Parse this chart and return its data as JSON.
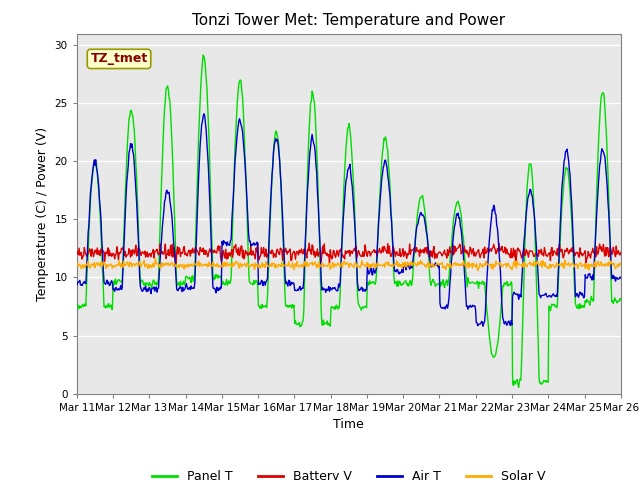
{
  "title": "Tonzi Tower Met: Temperature and Power",
  "xlabel": "Time",
  "ylabel": "Temperature (C) / Power (V)",
  "ylim": [
    0,
    31
  ],
  "yticks": [
    0,
    5,
    10,
    15,
    20,
    25,
    30
  ],
  "annotation_text": "TZ_tmet",
  "annotation_color": "#880000",
  "annotation_bg": "#ffffcc",
  "annotation_border": "#999900",
  "bg_color": "#e8e8e8",
  "line_colors": {
    "panel_t": "#00dd00",
    "battery_v": "#dd0000",
    "air_t": "#0000cc",
    "solar_v": "#ffaa00"
  },
  "legend_labels": [
    "Panel T",
    "Battery V",
    "Air T",
    "Solar V"
  ],
  "x_tick_labels": [
    "Mar 11",
    "Mar 12",
    "Mar 13",
    "Mar 14",
    "Mar 15",
    "Mar 16",
    "Mar 17",
    "Mar 18",
    "Mar 19",
    "Mar 20",
    "Mar 21",
    "Mar 22",
    "Mar 23",
    "Mar 24",
    "Mar 25",
    "Mar 26"
  ],
  "panel_t_peaks": [
    20.0,
    24.5,
    26.5,
    29.0,
    27.0,
    22.5,
    26.0,
    23.0,
    22.0,
    17.0,
    16.5,
    3.0,
    20.0,
    19.5,
    26.0
  ],
  "panel_t_nights": [
    7.5,
    9.5,
    9.5,
    10.0,
    9.5,
    7.5,
    6.0,
    7.5,
    9.5,
    9.5,
    9.5,
    9.5,
    1.0,
    7.5,
    8.0
  ],
  "air_t_peaks": [
    20.0,
    21.5,
    17.5,
    24.0,
    23.5,
    22.0,
    22.0,
    19.5,
    20.0,
    15.5,
    15.5,
    16.0,
    17.5,
    21.0,
    21.0
  ],
  "air_t_nights": [
    9.5,
    9.0,
    9.0,
    9.0,
    13.0,
    9.5,
    9.0,
    9.0,
    10.5,
    11.0,
    7.5,
    6.0,
    8.5,
    8.5,
    10.0
  ],
  "battery_base": 12.0,
  "solar_base": 11.0,
  "n_days": 15,
  "pts_per_day": 48
}
